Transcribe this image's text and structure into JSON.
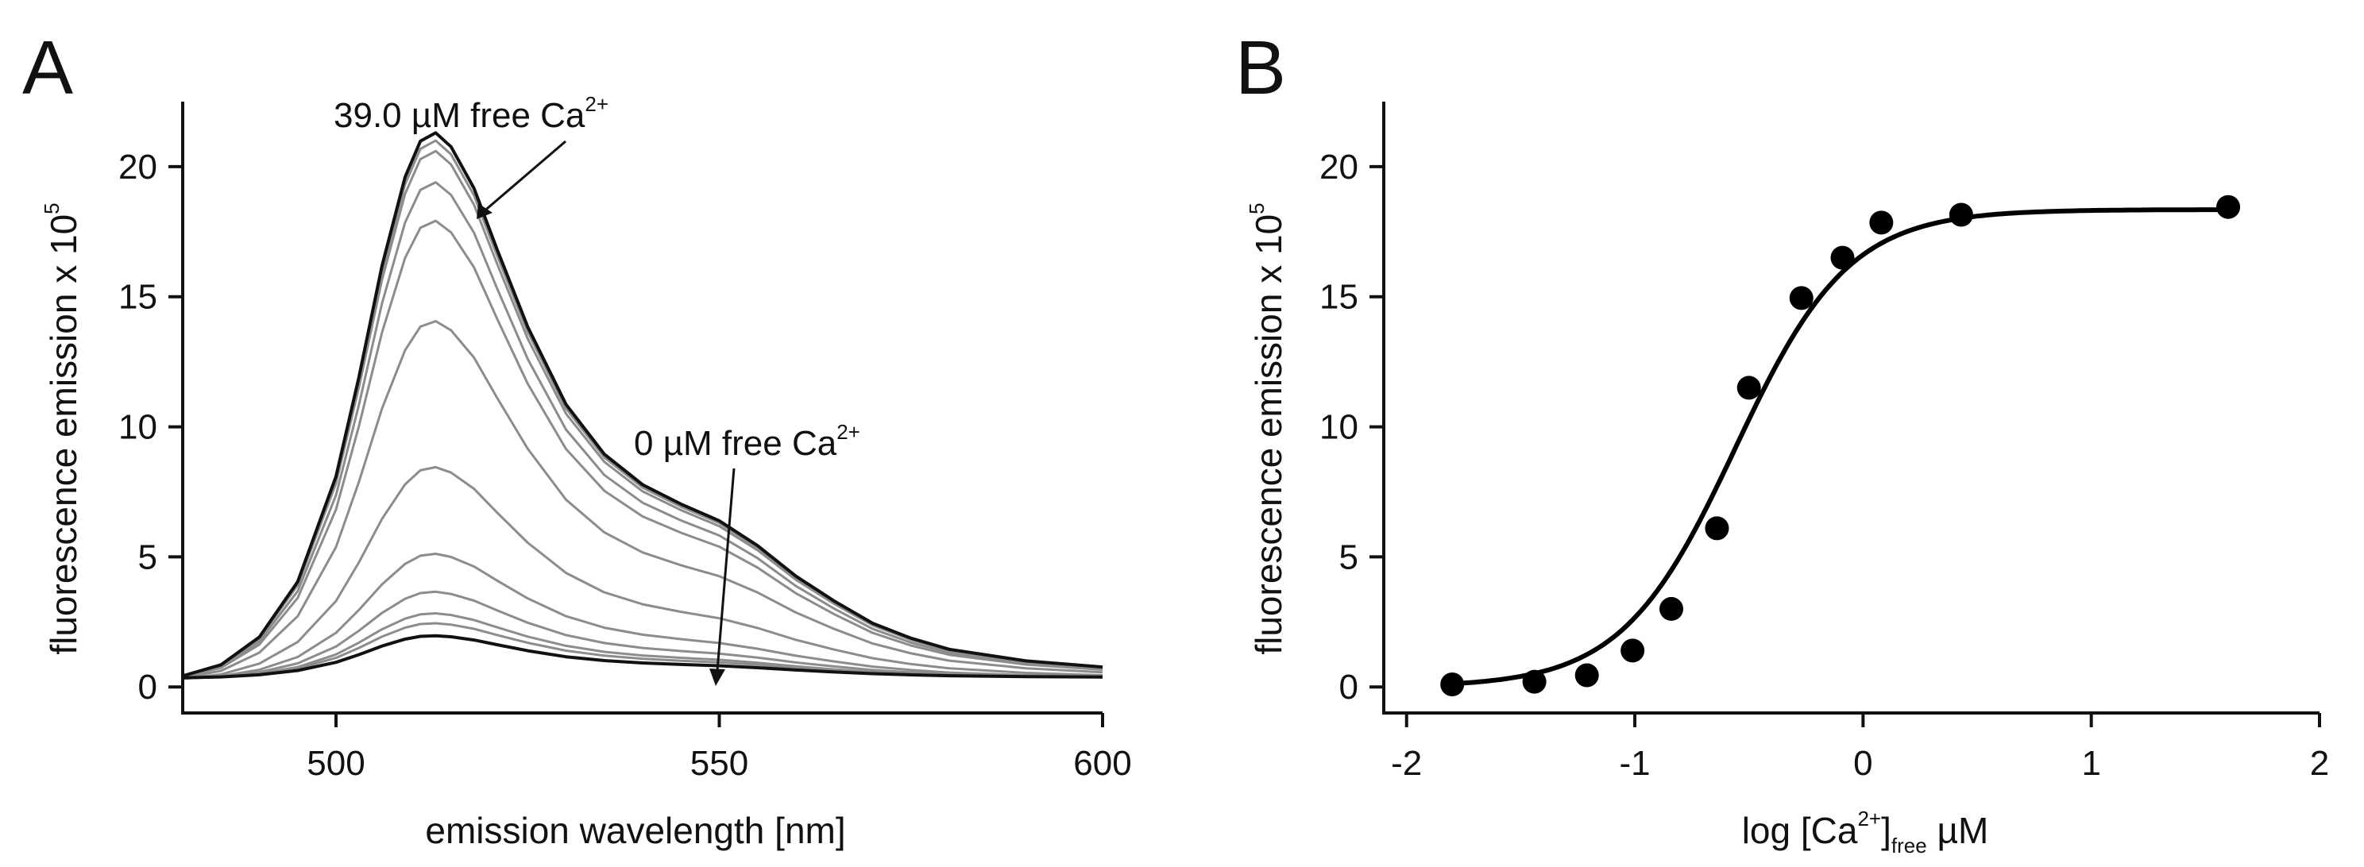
{
  "panels": [
    {
      "letter": "A",
      "xlabel": "emission wavelength [nm]",
      "ylabel_main": "fluorescence emission x 10",
      "ylabel_exp": "5",
      "xticks": [
        "500",
        "550",
        "600"
      ],
      "yticks": [
        "0",
        "5",
        "10",
        "15",
        "20"
      ],
      "annotations": [
        {
          "text": "39.0 µM free Ca",
          "sup": "2+"
        },
        {
          "text": "0 µM free Ca",
          "sup": "2+"
        }
      ]
    },
    {
      "letter": "B",
      "xlabel_pre": "log [Ca",
      "xlabel_sup": "2+",
      "xlabel_mid": "]",
      "xlabel_sub": "free",
      "xlabel_post": " µM",
      "ylabel_main": "fluorescence emission  x 10",
      "ylabel_exp": "5",
      "xticks": [
        "-2",
        "-1",
        "0",
        "1",
        "2"
      ],
      "yticks": [
        "0",
        "5",
        "10",
        "15",
        "20"
      ]
    }
  ],
  "chart_data": [
    {
      "type": "line",
      "xlabel": "emission wavelength [nm]",
      "ylabel": "fluorescence emission x 10^5",
      "xlim": [
        480,
        600
      ],
      "ylim": [
        -1,
        22.5
      ],
      "grid": false,
      "x": [
        480,
        485,
        490,
        495,
        500,
        503,
        506,
        509,
        511,
        513,
        515,
        518,
        521,
        525,
        530,
        535,
        540,
        545,
        550,
        555,
        560,
        565,
        570,
        575,
        580,
        590,
        600
      ],
      "shape": [
        0.02,
        0.04,
        0.09,
        0.19,
        0.38,
        0.56,
        0.76,
        0.92,
        0.985,
        1.0,
        0.975,
        0.9,
        0.79,
        0.65,
        0.51,
        0.42,
        0.365,
        0.33,
        0.3,
        0.255,
        0.2,
        0.155,
        0.115,
        0.088,
        0.068,
        0.047,
        0.036
      ],
      "shape_description": "normalized emission profile; curve_i = baseline_i + peak_i * shape",
      "series": [
        {
          "color": "#111111",
          "width": 4,
          "peak": 1.65,
          "baseline": 0.32
        },
        {
          "color": "#8c8c8c",
          "width": 3,
          "peak": 2.15,
          "baseline": 0.3
        },
        {
          "color": "#8c8c8c",
          "width": 3,
          "peak": 2.55,
          "baseline": 0.28
        },
        {
          "color": "#8c8c8c",
          "width": 3,
          "peak": 3.4,
          "baseline": 0.26
        },
        {
          "color": "#8c8c8c",
          "width": 3,
          "peak": 4.9,
          "baseline": 0.22
        },
        {
          "color": "#8c8c8c",
          "width": 3,
          "peak": 8.3,
          "baseline": 0.15
        },
        {
          "color": "#8c8c8c",
          "width": 3,
          "peak": 14.0,
          "baseline": 0.06
        },
        {
          "color": "#8c8c8c",
          "width": 3,
          "peak": 17.9,
          "baseline": 0.02
        },
        {
          "color": "#8c8c8c",
          "width": 3,
          "peak": 19.4,
          "baseline": 0.0
        },
        {
          "color": "#8c8c8c",
          "width": 3,
          "peak": 20.6,
          "baseline": 0.0
        },
        {
          "color": "#8c8c8c",
          "width": 3,
          "peak": 21.0,
          "baseline": 0.0
        },
        {
          "color": "#111111",
          "width": 4,
          "peak": 21.3,
          "baseline": 0.0
        }
      ]
    },
    {
      "type": "scatter",
      "xlabel": "log [Ca2+]free µM",
      "ylabel": "fluorescence emission x 10^5",
      "xlim": [
        -2,
        2
      ],
      "ylim": [
        -1,
        22.5
      ],
      "grid": false,
      "points": [
        {
          "x": -1.8,
          "y": 0.1
        },
        {
          "x": -1.44,
          "y": 0.2
        },
        {
          "x": -1.21,
          "y": 0.45
        },
        {
          "x": -1.01,
          "y": 1.4
        },
        {
          "x": -0.84,
          "y": 3.0
        },
        {
          "x": -0.64,
          "y": 6.1
        },
        {
          "x": -0.5,
          "y": 11.5
        },
        {
          "x": -0.27,
          "y": 14.95
        },
        {
          "x": -0.09,
          "y": 16.5
        },
        {
          "x": 0.08,
          "y": 17.85
        },
        {
          "x": 0.43,
          "y": 18.15
        },
        {
          "x": 1.6,
          "y": 18.45
        }
      ],
      "fit": {
        "type": "hill",
        "bottom": 0.0,
        "top": 18.35,
        "log_ec50": -0.56,
        "hill_slope": 1.75,
        "x_from": -1.85,
        "x_to": 1.6
      }
    }
  ]
}
